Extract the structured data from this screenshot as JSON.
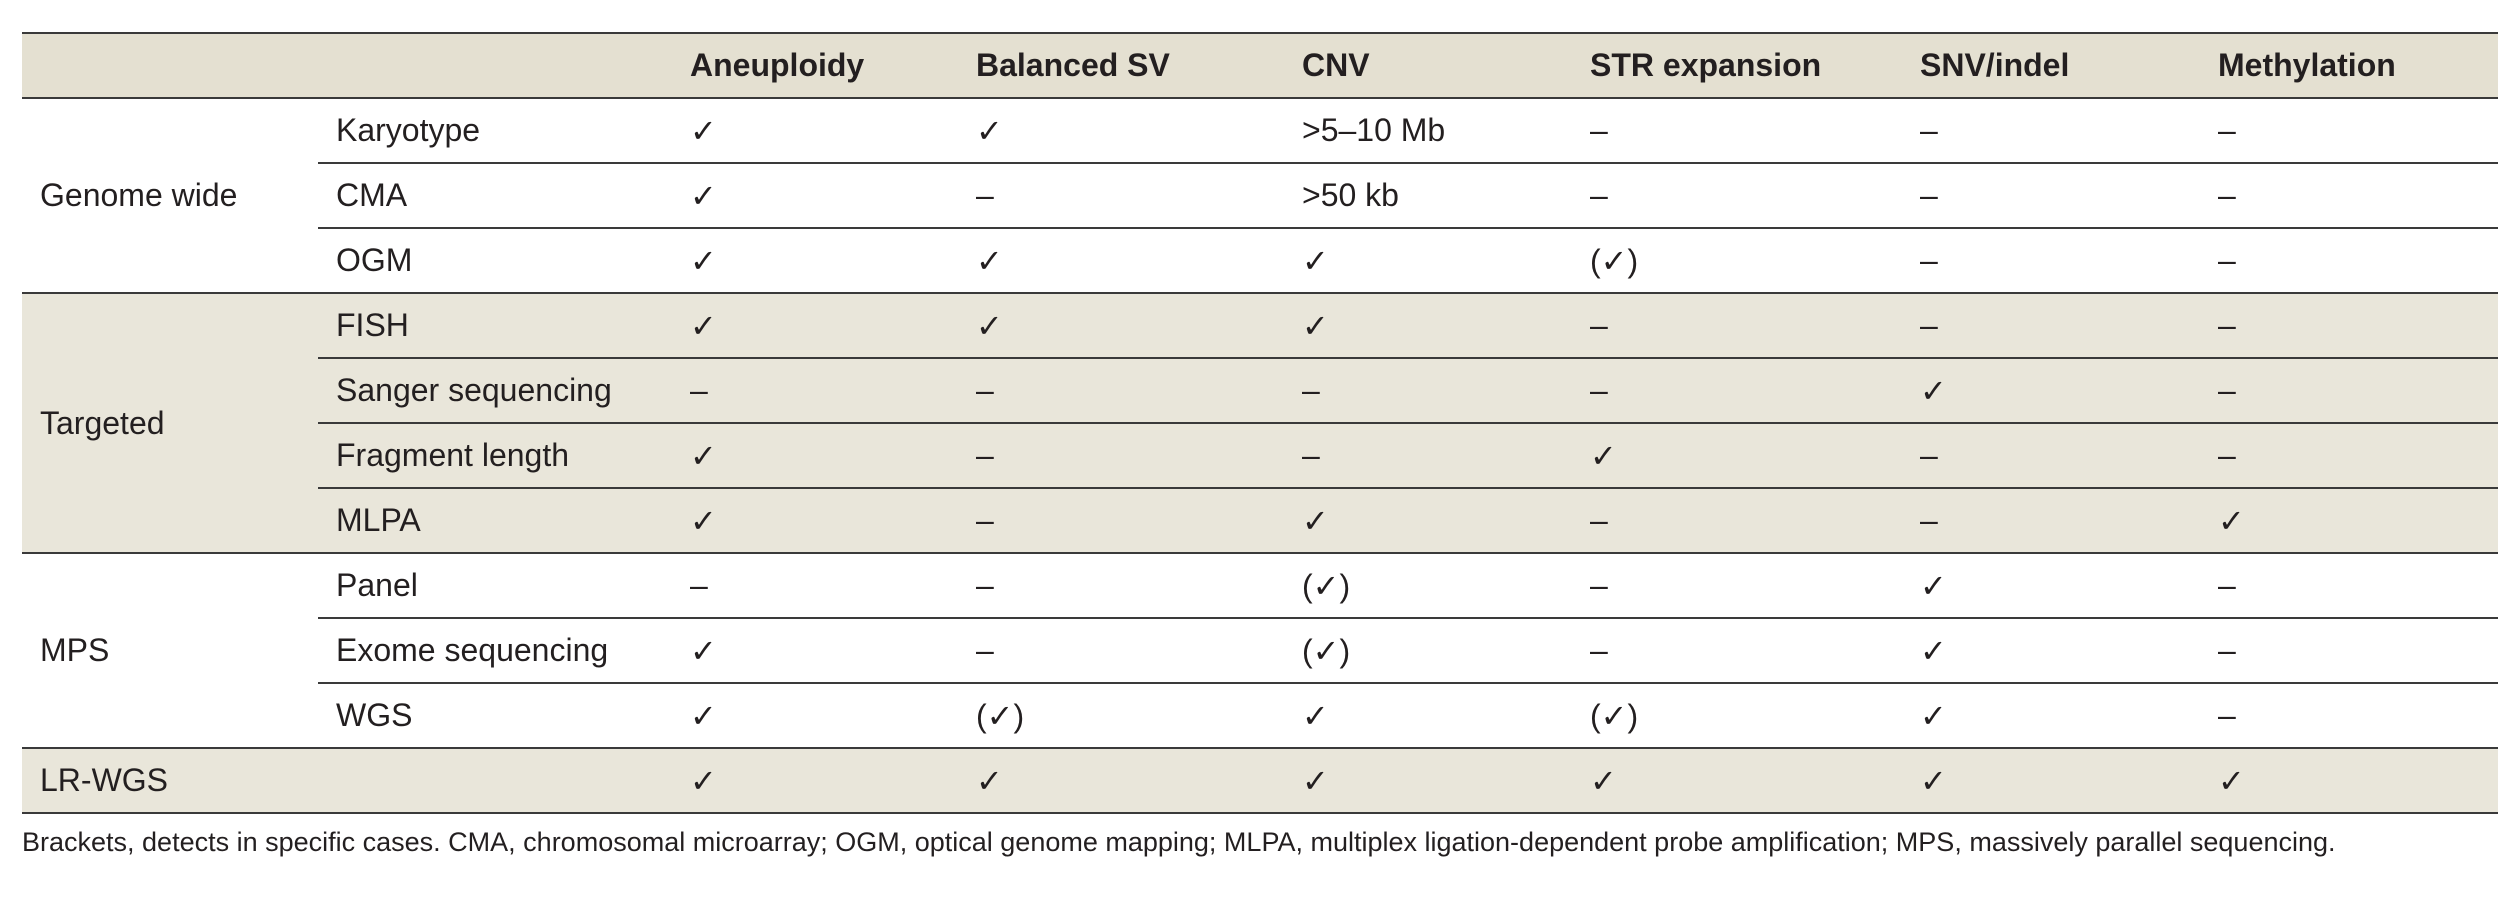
{
  "header": {
    "group_blank": "",
    "method_blank": "",
    "columns": [
      "Aneuploidy",
      "Balanced SV",
      "CNV",
      "STR expansion",
      "SNV/indel",
      "Methylation"
    ]
  },
  "groups": [
    {
      "label": "Genome wide",
      "shaded": false,
      "rows": [
        {
          "method": "Karyotype",
          "cells": [
            "✓",
            "✓",
            ">5–10 Mb",
            "–",
            "–",
            "–"
          ]
        },
        {
          "method": "CMA",
          "cells": [
            "✓",
            "–",
            ">50 kb",
            "–",
            "–",
            "–"
          ]
        },
        {
          "method": "OGM",
          "cells": [
            "✓",
            "✓",
            "✓",
            "(✓)",
            "–",
            "–"
          ]
        }
      ]
    },
    {
      "label": "Targeted",
      "shaded": true,
      "rows": [
        {
          "method": "FISH",
          "cells": [
            "✓",
            "✓",
            "✓",
            "–",
            "–",
            "–"
          ]
        },
        {
          "method": "Sanger sequencing",
          "cells": [
            "–",
            "–",
            "–",
            "–",
            "✓",
            "–"
          ]
        },
        {
          "method": "Fragment length",
          "cells": [
            "✓",
            "–",
            "–",
            "✓",
            "–",
            "–"
          ]
        },
        {
          "method": "MLPA",
          "cells": [
            "✓",
            "–",
            "✓",
            "–",
            "–",
            "✓"
          ]
        }
      ]
    },
    {
      "label": "MPS",
      "shaded": false,
      "rows": [
        {
          "method": "Panel",
          "cells": [
            "–",
            "–",
            "(✓)",
            "–",
            "✓",
            "–"
          ]
        },
        {
          "method": "Exome sequencing",
          "cells": [
            "✓",
            "–",
            "(✓)",
            "–",
            "✓",
            "–"
          ]
        },
        {
          "method": "WGS",
          "cells": [
            "✓",
            "(✓)",
            "✓",
            "(✓)",
            "✓",
            "–"
          ]
        }
      ]
    },
    {
      "label": "LR-WGS",
      "shaded": true,
      "rows": [
        {
          "method": "",
          "cells": [
            "✓",
            "✓",
            "✓",
            "✓",
            "✓",
            "✓"
          ]
        }
      ]
    }
  ],
  "footnote": "Brackets, detects in specific cases. CMA, chromosomal microarray; OGM, optical genome mapping; MLPA, multiplex ligation-dependent probe amplification; MPS, massively parallel sequencing."
}
